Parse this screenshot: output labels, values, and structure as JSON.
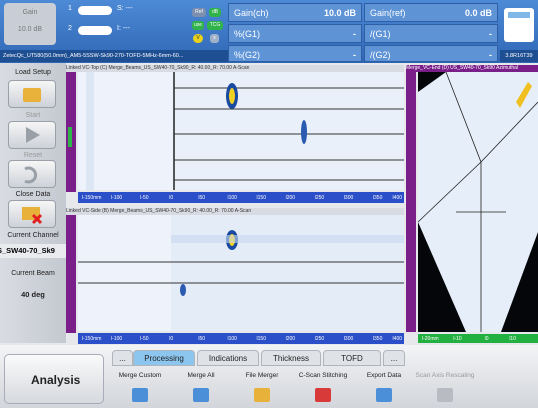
{
  "header": {
    "gain_label": "Gain",
    "gain_value": "10.0 dB",
    "channels": [
      {
        "number": "1",
        "field": "S: ---"
      },
      {
        "number": "2",
        "field": "I: ---"
      }
    ],
    "badges": [
      "Ref",
      "dB",
      "use",
      "TCG",
      "V",
      "x"
    ],
    "readouts": [
      [
        "Gain(ch)",
        "10.0 dB",
        "Gain(ref)",
        "0.0 dB"
      ],
      [
        "%(G1)",
        "-",
        "/(G1)",
        "-"
      ],
      [
        "%(G2)",
        "-",
        "/(G2)",
        "-"
      ]
    ],
    "file_name": "ZetecQc_UT580(50.0mm)_AM5-5SSW-Sk90-270-TOFD-5MHz-6mm-60...",
    "version": "3.8R16T39"
  },
  "sidebar": {
    "buttons": [
      "Load Setup",
      "Start",
      "Reset",
      "Close Data"
    ],
    "current_channel_label": "Current Channel",
    "current_channel": "S_SW40-70_Sk9",
    "current_beam_label": "Current Beam",
    "current_beam": "40 deg"
  },
  "views": {
    "top": {
      "title": "Linked VC-Top (C) Merge_Beams_US_SW40-70_Sk90_R: 40.00_R: 70.00 A-Scan",
      "x_labels": [
        "l-150mm",
        "l-100",
        "l-50",
        "l0",
        "l50",
        "l100",
        "l150",
        "l200",
        "l250",
        "l300",
        "l350",
        "l400"
      ]
    },
    "side": {
      "title": "Linked VC-Side (B) Merge_Beams_US_SW40-70_Sk90_R: 40.00_R: 70.00 A-Scan",
      "x_labels": [
        "l-150mm",
        "l-100",
        "l-50",
        "l0",
        "l50",
        "l100",
        "l150",
        "l200",
        "l250",
        "l300",
        "l350",
        "l400"
      ]
    },
    "end": {
      "title": "Merge_VC-End (D) US_SW40-70_Sk90 Azimuthal",
      "x_labels": [
        "l-20mm",
        "l-10",
        "l0",
        "l10"
      ]
    }
  },
  "tabs": [
    "...",
    "Processing",
    "Indications",
    "Thickness",
    "TOFD",
    "..."
  ],
  "mode": "Analysis",
  "tools": [
    "Merge Custom",
    "Merge All",
    "File Merger",
    "C-Scan Stitching",
    "Export Data",
    "Scan Axis Rescaling"
  ]
}
